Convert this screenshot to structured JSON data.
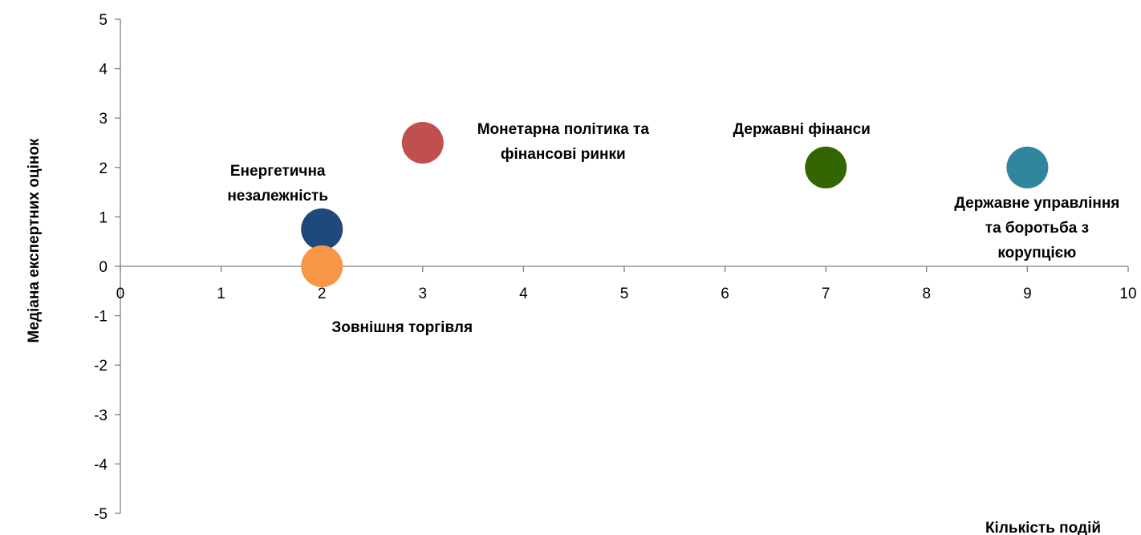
{
  "chart_data": {
    "type": "scatter",
    "title": "",
    "xlabel": "Кількість подій",
    "ylabel": "Медіана експертних оцінок",
    "xlim": [
      0,
      10
    ],
    "ylim": [
      -5,
      5
    ],
    "x_ticks": [
      0,
      1,
      2,
      3,
      4,
      5,
      6,
      7,
      8,
      9,
      10
    ],
    "y_ticks": [
      -5,
      -4,
      -3,
      -2,
      -1,
      0,
      1,
      2,
      3,
      4,
      5
    ],
    "grid": false,
    "legend": "none",
    "points": [
      {
        "label_lines": [
          "Енергетична",
          "незалежність"
        ],
        "x": 2,
        "y": 0.75,
        "color": "#1F497D"
      },
      {
        "label_lines": [
          "Зовнішня торгівля"
        ],
        "x": 2,
        "y": 0,
        "color": "#F79646"
      },
      {
        "label_lines": [
          "Монетарна політика та",
          "фінансові ринки"
        ],
        "x": 3,
        "y": 2.5,
        "color": "#C0504D"
      },
      {
        "label_lines": [
          "Державні фінанси"
        ],
        "x": 7,
        "y": 2,
        "color": "#336600"
      },
      {
        "label_lines": [
          "Державне управління",
          "та боротьба з",
          "корупцією"
        ],
        "x": 9,
        "y": 2,
        "color": "#31859C"
      }
    ]
  }
}
